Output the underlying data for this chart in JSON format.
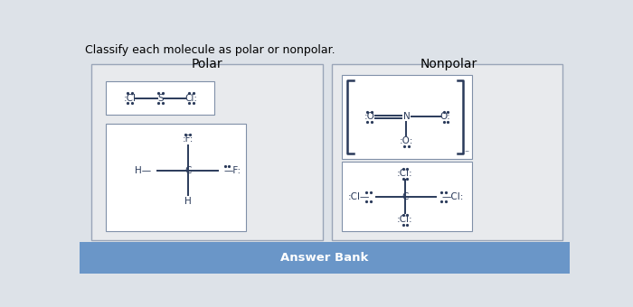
{
  "title": "Classify each molecule as polar or nonpolar.",
  "polar_label": "Polar",
  "nonpolar_label": "Nonpolar",
  "answer_bank": "Answer Bank",
  "bg_color": "#dde2e8",
  "panel_bg": "#e8eaed",
  "box_color": "#9aa5b8",
  "bar_color": "#6a96c8",
  "text_color": "#1e2d4a",
  "molecule_color": "#2a3a5a",
  "title_fontsize": 9,
  "label_fontsize": 10,
  "mol_fontsize": 7.5,
  "dot_size": 1.3
}
